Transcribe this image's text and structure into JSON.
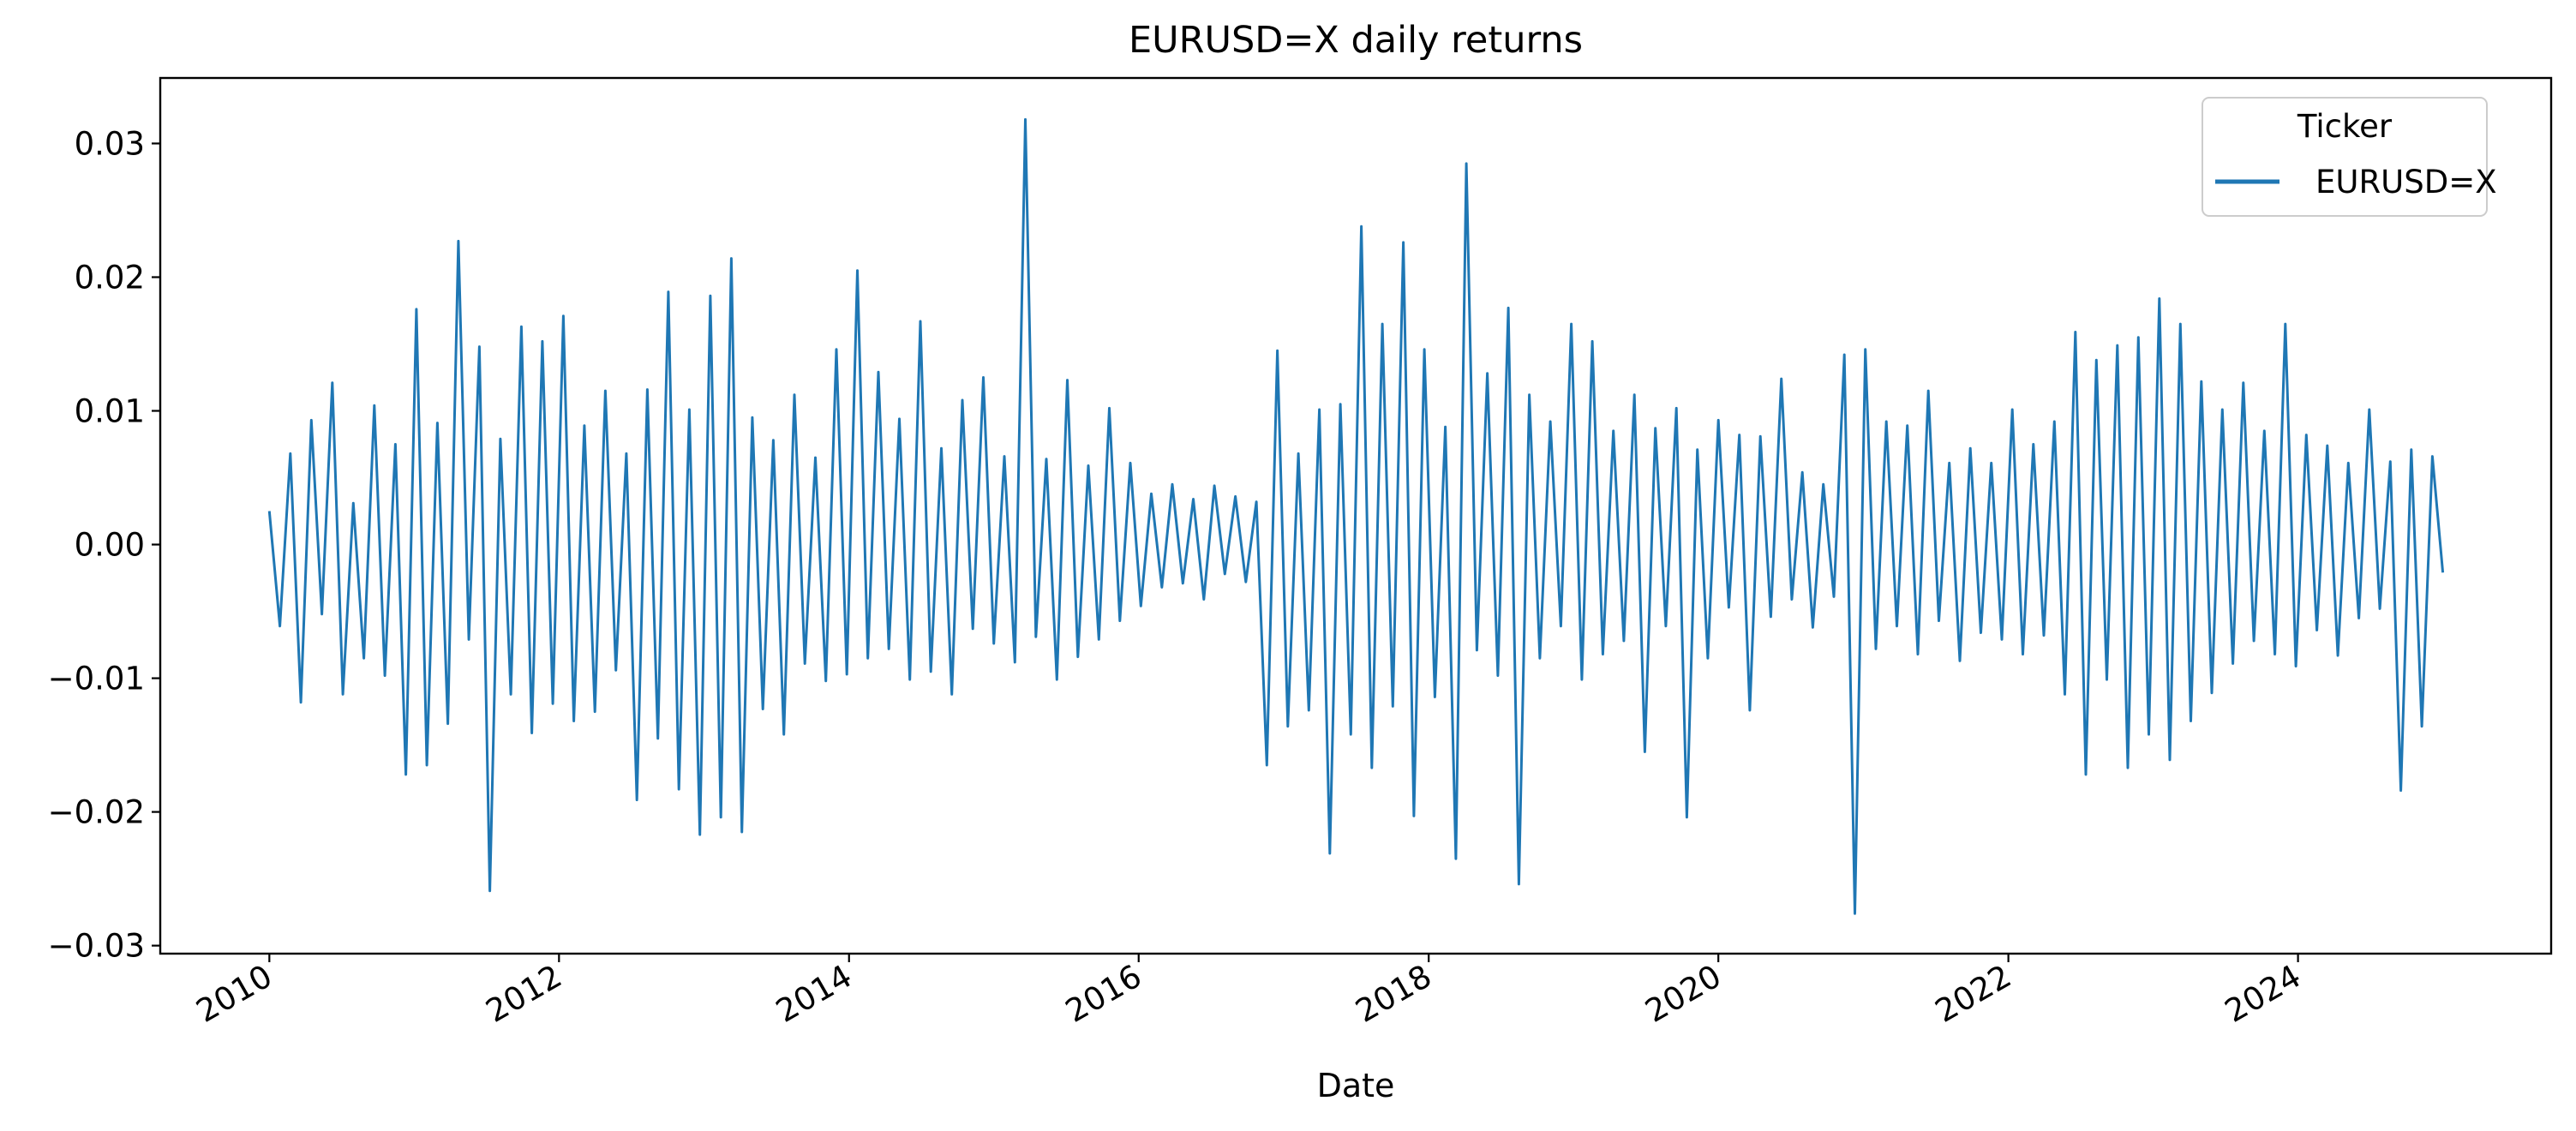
{
  "chart_data": {
    "type": "line",
    "title": "EURUSD=X daily returns",
    "xlabel": "Date",
    "ylabel": "",
    "x_ticks": [
      "2010",
      "2012",
      "2014",
      "2016",
      "2018",
      "2020",
      "2022",
      "2024"
    ],
    "y_ticks": [
      "−0.03",
      "−0.02",
      "−0.01",
      "0.00",
      "0.01",
      "0.02",
      "0.03"
    ],
    "y_tick_values": [
      -0.03,
      -0.02,
      -0.01,
      0.0,
      0.01,
      0.02,
      0.03
    ],
    "xlim": [
      "2009-04-01",
      "2025-09-30"
    ],
    "ylim": [
      -0.0306,
      0.0349
    ],
    "grid": false,
    "legend": {
      "title": "Ticker",
      "placement": "top-right",
      "entries": [
        "EURUSD=X"
      ]
    },
    "series": [
      {
        "name": "EURUSD=X",
        "color": "#1f77b4",
        "x_range": [
          "2010-01-01",
          "2024-12-31"
        ],
        "values_note_omitted": false,
        "values": [
          0.0025,
          -0.0061,
          0.0068,
          -0.0118,
          0.0093,
          -0.0052,
          0.0121,
          -0.0112,
          0.0031,
          -0.0085,
          0.0104,
          -0.0098,
          0.0075,
          -0.0172,
          0.0176,
          -0.0165,
          0.0091,
          -0.0134,
          0.0227,
          -0.0071,
          0.0148,
          -0.0259,
          0.0079,
          -0.0112,
          0.0163,
          -0.0141,
          0.0152,
          -0.0119,
          0.0171,
          -0.0132,
          0.0089,
          -0.0125,
          0.0115,
          -0.0094,
          0.0068,
          -0.0191,
          0.0116,
          -0.0145,
          0.0189,
          -0.0183,
          0.0101,
          -0.0217,
          0.0186,
          -0.0204,
          0.0214,
          -0.0215,
          0.0095,
          -0.0123,
          0.0078,
          -0.0142,
          0.0112,
          -0.0089,
          0.0065,
          -0.0102,
          0.0146,
          -0.0097,
          0.0205,
          -0.0085,
          0.0129,
          -0.0078,
          0.0094,
          -0.0101,
          0.0167,
          -0.0095,
          0.0072,
          -0.0112,
          0.0108,
          -0.0063,
          0.0125,
          -0.0074,
          0.0066,
          -0.0088,
          0.0318,
          -0.0069,
          0.0064,
          -0.0101,
          0.0123,
          -0.0084,
          0.0059,
          -0.0071,
          0.0102,
          -0.0057,
          0.0061,
          -0.0046,
          0.0038,
          -0.0032,
          0.0045,
          -0.0029,
          0.0034,
          -0.0041,
          0.0044,
          -0.0022,
          0.0036,
          -0.0028,
          0.0032,
          -0.0165,
          0.0145,
          -0.0136,
          0.0068,
          -0.0124,
          0.0101,
          -0.0231,
          0.0105,
          -0.0142,
          0.0238,
          -0.0167,
          0.0165,
          -0.0121,
          0.0226,
          -0.0203,
          0.0146,
          -0.0114,
          0.0088,
          -0.0235,
          0.0285,
          -0.0079,
          0.0128,
          -0.0098,
          0.0177,
          -0.0254,
          0.0112,
          -0.0085,
          0.0092,
          -0.0061,
          0.0165,
          -0.0101,
          0.0152,
          -0.0082,
          0.0085,
          -0.0072,
          0.0112,
          -0.0155,
          0.0087,
          -0.0061,
          0.0102,
          -0.0204,
          0.0071,
          -0.0085,
          0.0093,
          -0.0047,
          0.0082,
          -0.0124,
          0.0081,
          -0.0054,
          0.0124,
          -0.0041,
          0.0054,
          -0.0062,
          0.0045,
          -0.0039,
          0.0142,
          -0.0276,
          0.0146,
          -0.0078,
          0.0092,
          -0.0061,
          0.0089,
          -0.0082,
          0.0115,
          -0.0057,
          0.0061,
          -0.0087,
          0.0072,
          -0.0066,
          0.0061,
          -0.0071,
          0.0101,
          -0.0082,
          0.0075,
          -0.0068,
          0.0092,
          -0.0112,
          0.0159,
          -0.0172,
          0.0138,
          -0.0101,
          0.0149,
          -0.0167,
          0.0155,
          -0.0142,
          0.0184,
          -0.0161,
          0.0165,
          -0.0132,
          0.0122,
          -0.0111,
          0.0101,
          -0.0089,
          0.0121,
          -0.0072,
          0.0085,
          -0.0082,
          0.0165,
          -0.0091,
          0.0082,
          -0.0064,
          0.0074,
          -0.0083,
          0.0061,
          -0.0055,
          0.0101,
          -0.0048,
          0.0062,
          -0.0184,
          0.0071,
          -0.0136,
          0.0066,
          -0.0021
        ]
      }
    ]
  }
}
